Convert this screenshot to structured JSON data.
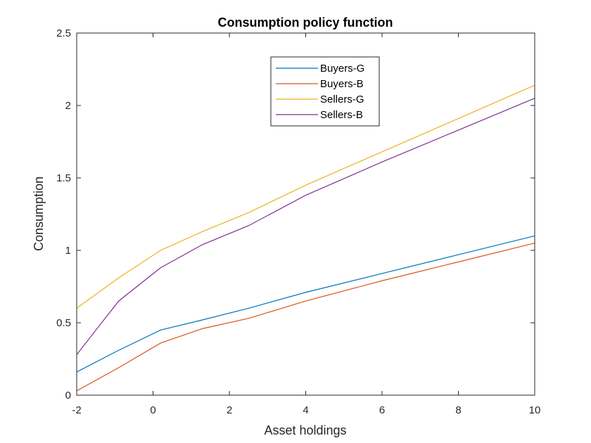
{
  "chart_data": {
    "type": "line",
    "title": "Consumption policy function",
    "xlabel": "Asset holdings",
    "ylabel": "Consumption",
    "xlim": [
      -2,
      10
    ],
    "ylim": [
      0,
      2.5
    ],
    "xticks": [
      -2,
      0,
      2,
      4,
      6,
      8,
      10
    ],
    "yticks": [
      0,
      0.5,
      1,
      1.5,
      2,
      2.5
    ],
    "xtick_labels": [
      "-2",
      "0",
      "2",
      "4",
      "6",
      "8",
      "10"
    ],
    "ytick_labels": [
      "0",
      "0.5",
      "1",
      "1.5",
      "2",
      "2.5"
    ],
    "grid": false,
    "legend_position": "top-center",
    "series": [
      {
        "name": "Buyers-G",
        "color": "#0072BD",
        "x": [
          -2,
          -0.9,
          0.2,
          1.3,
          2.5,
          4,
          6,
          8,
          10
        ],
        "y": [
          0.16,
          0.31,
          0.45,
          0.52,
          0.6,
          0.71,
          0.84,
          0.97,
          1.1
        ]
      },
      {
        "name": "Buyers-B",
        "color": "#D95319",
        "x": [
          -2,
          -0.9,
          0.2,
          1.3,
          2.5,
          4,
          6,
          8,
          10
        ],
        "y": [
          0.03,
          0.19,
          0.36,
          0.46,
          0.53,
          0.65,
          0.79,
          0.92,
          1.05
        ]
      },
      {
        "name": "Sellers-G",
        "color": "#EDB120",
        "x": [
          -2,
          -0.9,
          0.2,
          1.3,
          2.5,
          4,
          6,
          8,
          10
        ],
        "y": [
          0.6,
          0.81,
          1.0,
          1.13,
          1.26,
          1.45,
          1.68,
          1.91,
          2.14
        ]
      },
      {
        "name": "Sellers-B",
        "color": "#7E2F8E",
        "x": [
          -2,
          -0.9,
          0.2,
          1.3,
          2.5,
          4,
          6,
          8,
          10
        ],
        "y": [
          0.28,
          0.65,
          0.88,
          1.04,
          1.17,
          1.38,
          1.61,
          1.83,
          2.05
        ]
      }
    ]
  }
}
